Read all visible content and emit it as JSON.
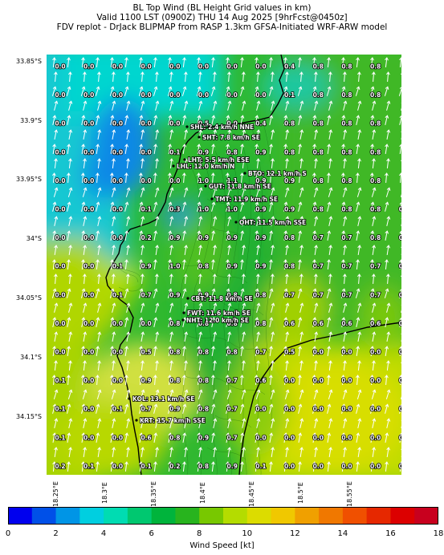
{
  "title": {
    "line1": "BL Top Wind (BL Height Grid values in km)",
    "line2": "Valid 1100 LST (0900Z) THU 14 Aug 2025 [9hrFcst@0450z]",
    "line3": "FDV replot - DrJack BLIPMAP from RASP 1.3km GFSA-Initiated WRF-ARW model"
  },
  "lat_labels": [
    "33.85°S",
    "33.9°S",
    "33.95°S",
    "34°S",
    "34.05°S",
    "34.1°S",
    "34.15°S"
  ],
  "lon_labels": [
    "18.25°E",
    "18.3°E",
    "18.35°E",
    "18.4°E",
    "18.45°E",
    "18.5°E",
    "18.55°E"
  ],
  "grid_values": [
    [
      "0.0",
      "0.0",
      "0.0",
      "0.0",
      "0.0",
      "0.0",
      "0.0",
      "0.0",
      "0.4",
      "0.8",
      "0.8",
      "0.8"
    ],
    [
      "0.0",
      "0.0",
      "0.0",
      "0.0",
      "0.0",
      "0.0",
      "0.0",
      "0.0",
      "0.1",
      "0.8",
      "0.8",
      "0.8"
    ],
    [
      "0.0",
      "0.0",
      "0.0",
      "0.0",
      "0.0",
      "0.5",
      "0.0",
      "0.4",
      "0.8",
      "0.8",
      "0.8",
      "0.8"
    ],
    [
      "0.0",
      "0.0",
      "0.0",
      "0.0",
      "0.1",
      "0.9",
      "0.8",
      "0.9",
      "0.8",
      "0.8",
      "0.8",
      "0.8"
    ],
    [
      "0.0",
      "0.0",
      "0.0",
      "0.0",
      "0.0",
      "1.0",
      "1.1",
      "0.9",
      "0.9",
      "0.8",
      "0.8",
      "0.8"
    ],
    [
      "0.0",
      "0.0",
      "0.0",
      "0.1",
      "0.3",
      "1.0",
      "1.0",
      "0.9",
      "0.9",
      "0.8",
      "0.8",
      "0.8",
      "0.7"
    ],
    [
      "0.0",
      "0.0",
      "0.0",
      "0.2",
      "0.9",
      "0.9",
      "0.9",
      "0.9",
      "0.8",
      "0.7",
      "0.7",
      "0.8",
      "0.7"
    ],
    [
      "0.0",
      "0.0",
      "0.1",
      "0.9",
      "1.0",
      "0.8",
      "0.9",
      "0.9",
      "0.8",
      "0.7",
      "0.7",
      "0.7",
      "0.7"
    ],
    [
      "0.0",
      "0.0",
      "0.1",
      "0.7",
      "0.9",
      "0.9",
      "0.8",
      "0.8",
      "0.7",
      "0.7",
      "0.7",
      "0.7",
      "0.6"
    ],
    [
      "0.0",
      "0.0",
      "0.0",
      "0.0",
      "0.8",
      "0.8",
      "0.8",
      "0.8",
      "0.6",
      "0.6",
      "0.6",
      "0.6",
      "0.0"
    ],
    [
      "0.0",
      "0.0",
      "0.0",
      "0.5",
      "0.8",
      "0.8",
      "0.8",
      "0.7",
      "0.5",
      "0.0",
      "0.0",
      "0.0",
      "0.0"
    ],
    [
      "0.1",
      "0.0",
      "0.0",
      "0.9",
      "0.8",
      "0.8",
      "0.7",
      "0.6",
      "0.0",
      "0.0",
      "0.0",
      "0.0",
      "0.0"
    ],
    [
      "0.1",
      "0.0",
      "0.1",
      "0.7",
      "0.9",
      "0.8",
      "0.7",
      "0.0",
      "0.0",
      "0.0",
      "0.0",
      "0.0",
      "0.0"
    ],
    [
      "0.1",
      "0.0",
      "0.0",
      "0.6",
      "0.8",
      "0.9",
      "0.7",
      "0.0",
      "0.0",
      "0.0",
      "0.0",
      "0.0",
      "0.0"
    ],
    [
      "0.2",
      "0.1",
      "0.0",
      "0.1",
      "0.2",
      "0.8",
      "0.9",
      "0.1",
      "0.0",
      "0.0",
      "0.0",
      "0.0",
      "0.0"
    ]
  ],
  "stations": [
    {
      "label": "SHL: 2.4 km/h NNE"
    },
    {
      "label": "SHT: 7.8 km/h SE"
    },
    {
      "label": "LHT: 5.5 km/h ESE"
    },
    {
      "label": "LHL: 12.0 km/h N"
    },
    {
      "label": "BTO: 12.1 km/h S"
    },
    {
      "label": "GUT: 11.8 km/h SE"
    },
    {
      "label": "TMT: 11.9 km/h SE"
    },
    {
      "label": "OHT: 11.5 km/h SSE"
    },
    {
      "label": "CBT: 11.8 km/h SE"
    },
    {
      "label": "FWT: 11.6 km/h SE"
    },
    {
      "label": "NHT: 12.0 km/h SE"
    },
    {
      "label": "KOL: 13.1 km/h SE"
    },
    {
      "label": "KRT: 15.7 km/h SSE"
    }
  ],
  "colorbar": {
    "label": "Wind Speed [kt]",
    "ticks": [
      "0",
      "2",
      "4",
      "6",
      "8",
      "10",
      "12",
      "14",
      "16",
      "18"
    ],
    "colors": [
      "#0000ee",
      "#0050e8",
      "#0095e6",
      "#00cfe0",
      "#00dcb2",
      "#00c870",
      "#00b43c",
      "#28b41e",
      "#78c800",
      "#b4dc00",
      "#dcdc00",
      "#f0c800",
      "#f0a000",
      "#f07800",
      "#f05000",
      "#e62800",
      "#dc0000",
      "#c8001e"
    ]
  },
  "wind_field": {
    "direction_from": "SSE",
    "speed_min_kt": 3,
    "speed_max_kt": 11
  }
}
